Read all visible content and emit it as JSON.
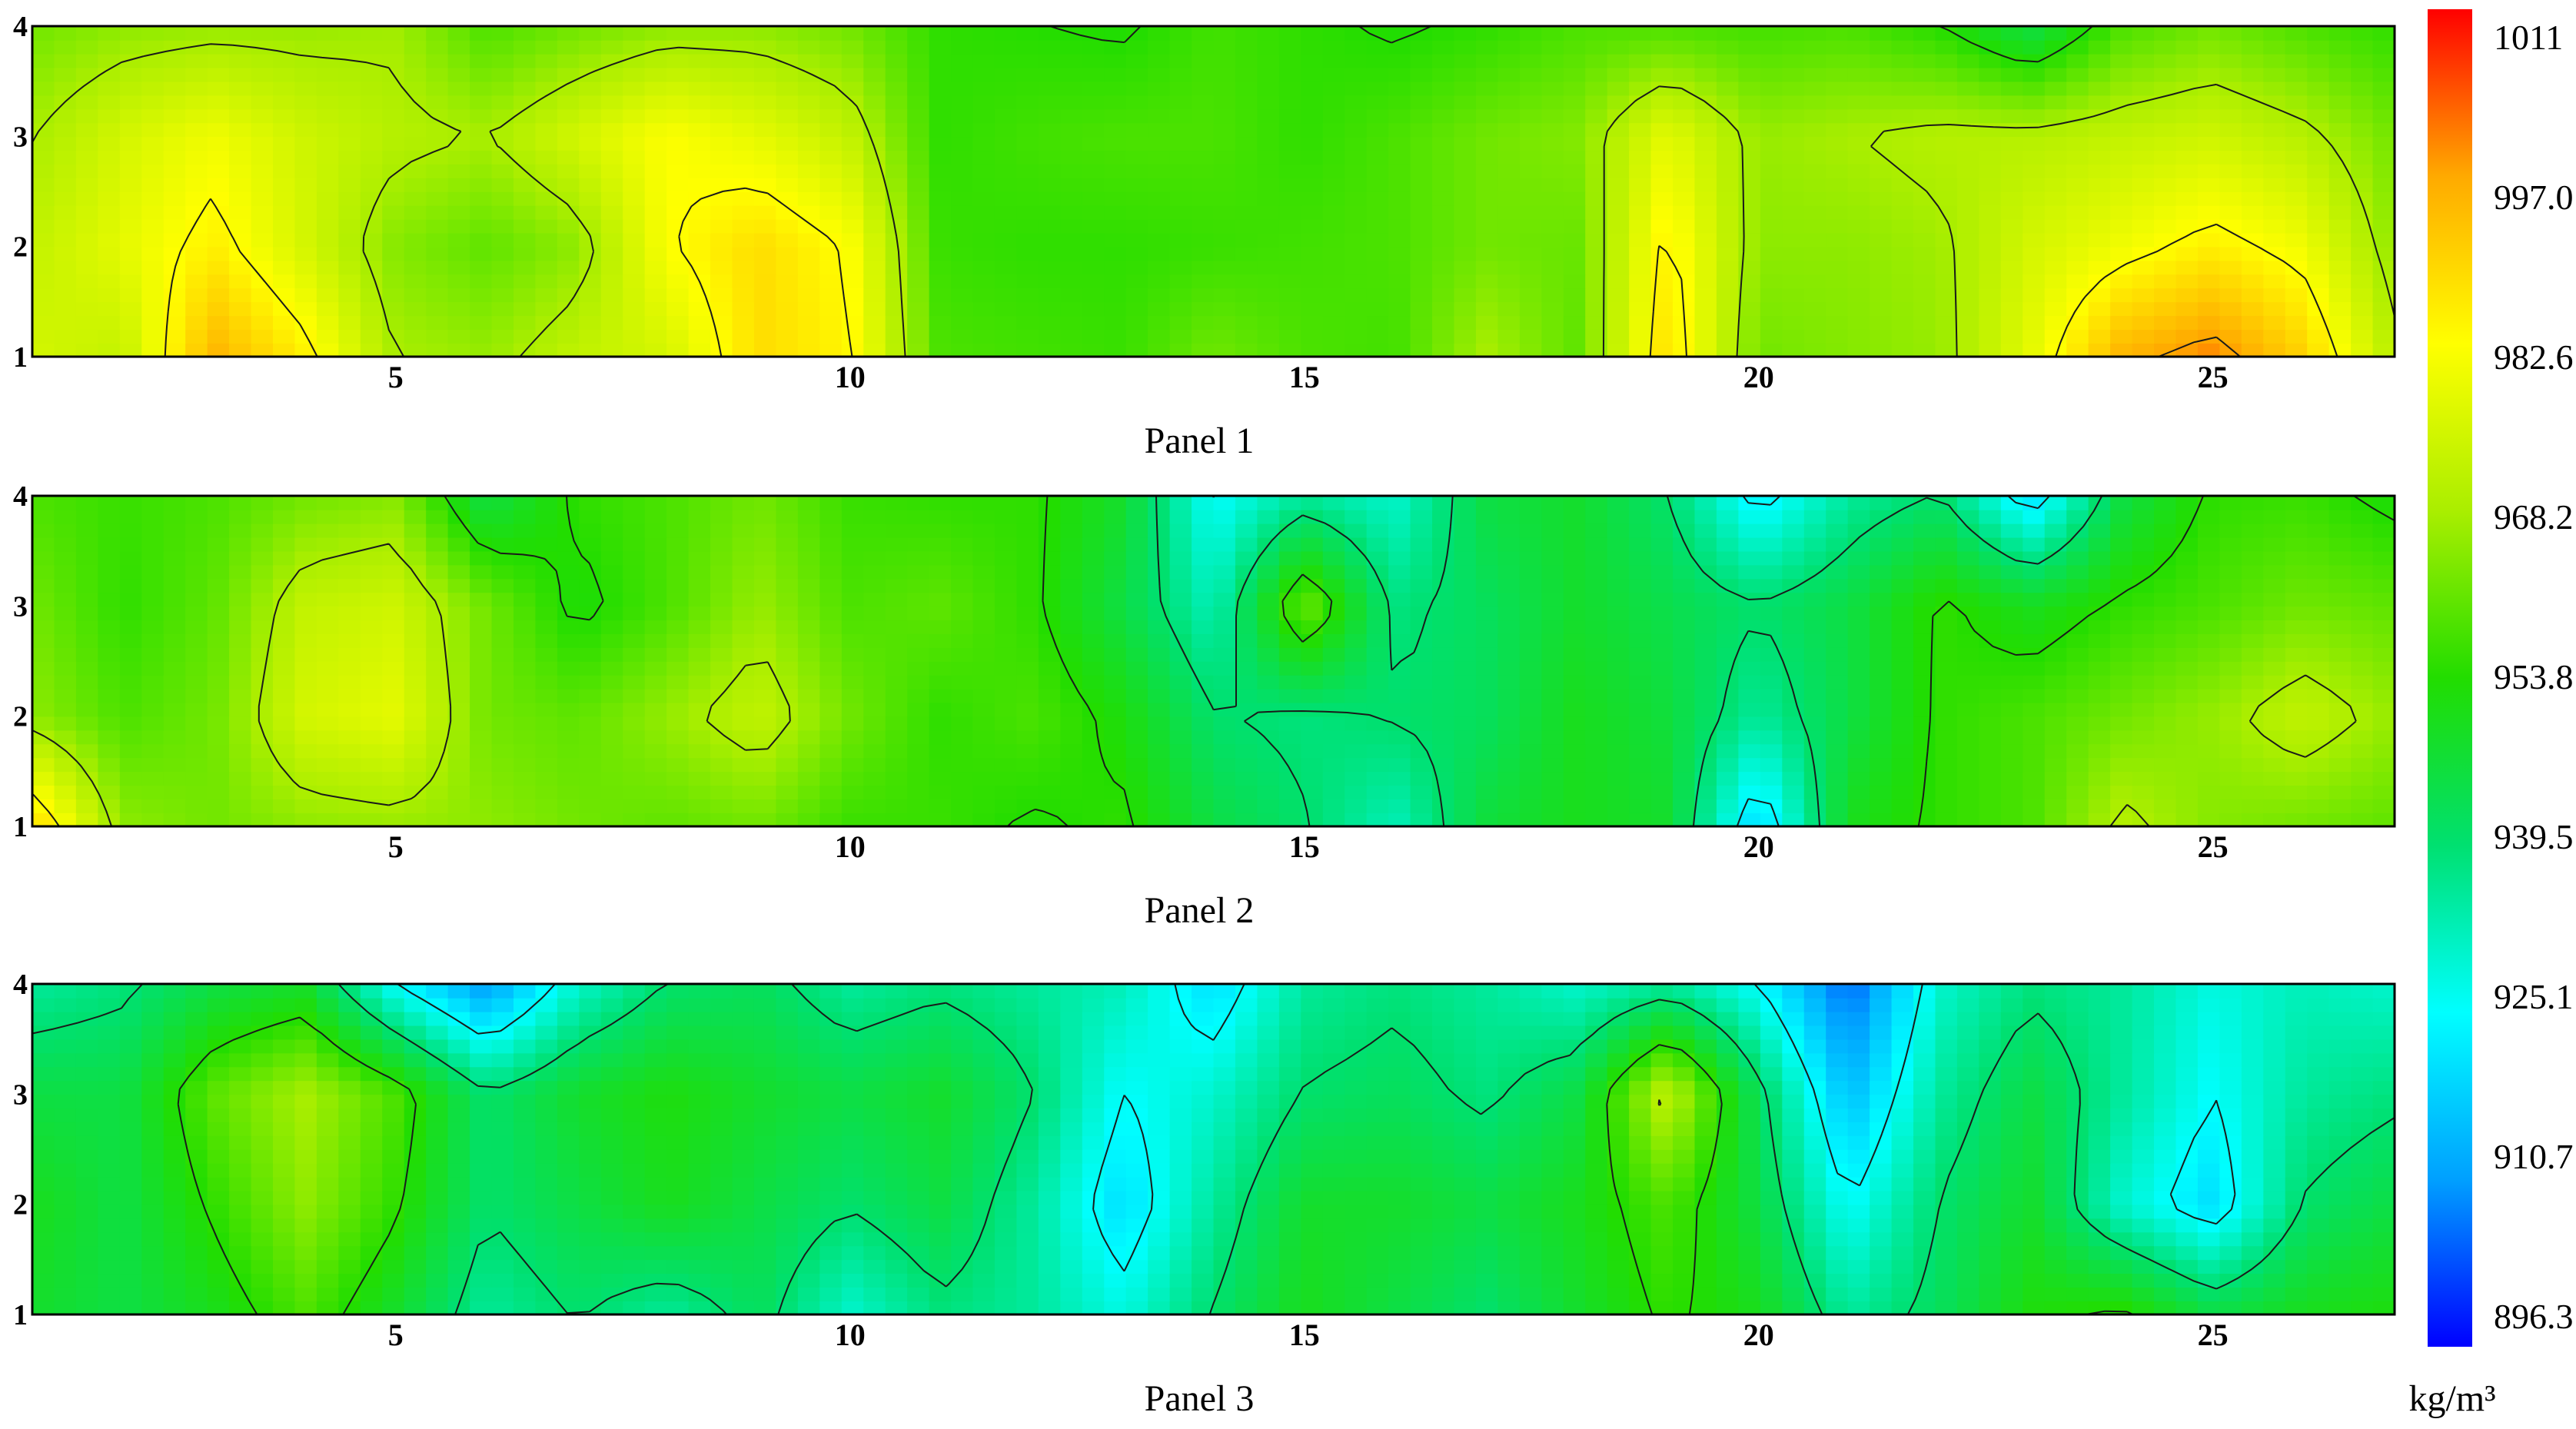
{
  "chart_data": {
    "type": "heatmap",
    "colorbar": {
      "unit": "kg/m³",
      "ticks": [
        "1011",
        "997.0",
        "982.6",
        "968.2",
        "953.8",
        "939.5",
        "925.1",
        "910.7",
        "896.3"
      ],
      "range": [
        896.3,
        1011
      ],
      "colormap": [
        "#0000ff",
        "#00a0ff",
        "#00ffff",
        "#00e070",
        "#22dd00",
        "#aaee00",
        "#ffff00",
        "#ffaa00",
        "#ff0000"
      ]
    },
    "x_ticks": [
      "5",
      "10",
      "15",
      "20",
      "25"
    ],
    "x_tick_values": [
      5,
      10,
      15,
      20,
      25
    ],
    "xlim": [
      1,
      27
    ],
    "y_ticks": [
      "1",
      "2",
      "3",
      "4"
    ],
    "y_tick_values": [
      1,
      2,
      3,
      4
    ],
    "ylim": [
      1,
      4
    ],
    "panels": [
      {
        "title": "Panel 1",
        "rows": [
          [
            975,
            972,
            995,
            985,
            968,
            966,
            972,
            975,
            988,
            984,
            958,
            957,
            956,
            962,
            958,
            957,
            968,
            960,
            988,
            962,
            964,
            966,
            978,
            995,
            1000,
            990,
            970
          ],
          [
            972,
            978,
            985,
            975,
            964,
            960,
            965,
            982,
            988,
            982,
            956,
            955,
            955,
            956,
            957,
            958,
            962,
            961,
            985,
            965,
            965,
            967,
            975,
            980,
            985,
            980,
            965
          ],
          [
            968,
            975,
            980,
            974,
            970,
            968,
            975,
            982,
            978,
            972,
            955,
            957,
            958,
            958,
            955,
            958,
            962,
            964,
            978,
            966,
            968,
            970,
            970,
            972,
            974,
            970,
            962
          ],
          [
            962,
            965,
            966,
            966,
            967,
            958,
            962,
            965,
            965,
            962,
            955,
            954,
            953,
            957,
            955,
            953,
            955,
            958,
            958,
            957,
            958,
            954,
            945,
            958,
            962,
            958,
            955
          ]
        ]
      },
      {
        "title": "Panel 2",
        "rows": [
          [
            990,
            965,
            962,
            965,
            966,
            965,
            962,
            960,
            962,
            956,
            956,
            953,
            955,
            945,
            940,
            932,
            946,
            950,
            948,
            918,
            950,
            955,
            958,
            970,
            964,
            962,
            960
          ],
          [
            965,
            958,
            962,
            975,
            978,
            962,
            960,
            966,
            972,
            962,
            955,
            958,
            952,
            940,
            938,
            940,
            942,
            950,
            946,
            935,
            945,
            955,
            958,
            962,
            966,
            972,
            966
          ],
          [
            962,
            955,
            960,
            972,
            974,
            962,
            952,
            958,
            966,
            958,
            960,
            955,
            945,
            932,
            962,
            938,
            942,
            948,
            944,
            940,
            945,
            955,
            950,
            955,
            958,
            962,
            960
          ],
          [
            958,
            956,
            958,
            962,
            964,
            945,
            955,
            958,
            962,
            956,
            955,
            955,
            948,
            925,
            935,
            930,
            945,
            948,
            940,
            922,
            935,
            940,
            920,
            945,
            955,
            956,
            952
          ]
        ]
      },
      {
        "title": "Panel 3",
        "rows": [
          [
            948,
            945,
            950,
            958,
            948,
            935,
            940,
            935,
            942,
            930,
            938,
            935,
            928,
            940,
            950,
            945,
            940,
            948,
            955,
            950,
            935,
            942,
            952,
            955,
            945,
            950,
            952
          ],
          [
            950,
            945,
            955,
            965,
            955,
            940,
            945,
            950,
            945,
            940,
            945,
            935,
            920,
            935,
            948,
            948,
            945,
            950,
            958,
            945,
            925,
            940,
            948,
            930,
            920,
            940,
            945
          ],
          [
            945,
            945,
            960,
            968,
            958,
            940,
            948,
            952,
            948,
            945,
            948,
            940,
            925,
            930,
            940,
            942,
            938,
            945,
            972,
            942,
            915,
            935,
            945,
            935,
            925,
            935,
            938
          ],
          [
            935,
            938,
            945,
            948,
            925,
            910,
            930,
            940,
            942,
            935,
            938,
            935,
            932,
            920,
            935,
            938,
            935,
            930,
            935,
            925,
            905,
            930,
            938,
            935,
            928,
            932,
            930
          ]
        ]
      }
    ]
  }
}
